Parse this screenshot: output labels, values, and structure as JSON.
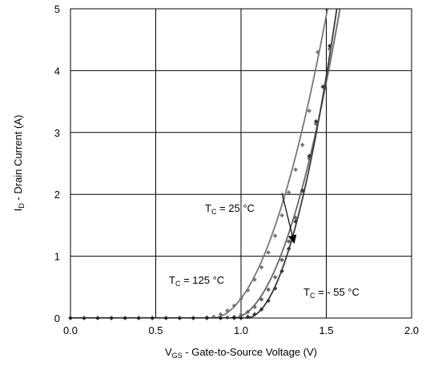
{
  "chart_data": {
    "type": "scatter",
    "xlabel": {
      "main": "V",
      "sub": "GS",
      "rest": " - Gate-to-Source Voltage (V)"
    },
    "ylabel": {
      "main": "I",
      "sub": "D",
      "rest": " - Drain Current  (A)"
    },
    "xlim": [
      0,
      2
    ],
    "ylim": [
      0,
      5
    ],
    "x_ticks": [
      "0.0",
      "0.5",
      "1.0",
      "1.5",
      "2.0"
    ],
    "y_ticks": [
      "0",
      "1",
      "2",
      "3",
      "4",
      "5"
    ],
    "x_tick_values": [
      0,
      0.5,
      1.0,
      1.5,
      2.0
    ],
    "y_tick_values": [
      0,
      1,
      2,
      3,
      4,
      5
    ],
    "grid": true,
    "series": [
      {
        "key": "t125",
        "label": {
          "main": "T",
          "sub": "C",
          "rest": " = 125 °C"
        },
        "color": "#777777",
        "curve": {
          "vth": 0.83,
          "k": 10.9,
          "n": 2.0
        },
        "points": [
          [
            0.0,
            0.0
          ],
          [
            0.08,
            0.0
          ],
          [
            0.16,
            0.0
          ],
          [
            0.24,
            0.0
          ],
          [
            0.32,
            0.0
          ],
          [
            0.4,
            0.0
          ],
          [
            0.48,
            0.0
          ],
          [
            0.56,
            0.0
          ],
          [
            0.64,
            0.0
          ],
          [
            0.72,
            0.0
          ],
          [
            0.8,
            0.01
          ],
          [
            0.84,
            0.02
          ],
          [
            0.88,
            0.06
          ],
          [
            0.92,
            0.12
          ],
          [
            0.96,
            0.2
          ],
          [
            1.0,
            0.31
          ],
          [
            1.04,
            0.45
          ],
          [
            1.08,
            0.62
          ],
          [
            1.12,
            0.82
          ],
          [
            1.16,
            1.06
          ],
          [
            1.2,
            1.33
          ],
          [
            1.24,
            1.66
          ],
          [
            1.28,
            2.03
          ],
          [
            1.32,
            2.4
          ],
          [
            1.36,
            2.8
          ],
          [
            1.4,
            3.35
          ],
          [
            1.45,
            4.3
          ]
        ]
      },
      {
        "key": "t25",
        "label": {
          "main": "T",
          "sub": "C",
          "rest": " = 25 °C"
        },
        "color": "#666666",
        "curve": {
          "vth": 0.95,
          "k": 12.6,
          "n": 2.0
        },
        "points": [
          [
            0.0,
            0.0
          ],
          [
            0.08,
            0.0
          ],
          [
            0.16,
            0.0
          ],
          [
            0.24,
            0.0
          ],
          [
            0.32,
            0.0
          ],
          [
            0.4,
            0.0
          ],
          [
            0.48,
            0.0
          ],
          [
            0.56,
            0.0
          ],
          [
            0.64,
            0.0
          ],
          [
            0.72,
            0.0
          ],
          [
            0.8,
            0.0
          ],
          [
            0.88,
            0.0
          ],
          [
            0.92,
            0.01
          ],
          [
            0.96,
            0.02
          ],
          [
            1.0,
            0.05
          ],
          [
            1.04,
            0.1
          ],
          [
            1.08,
            0.18
          ],
          [
            1.12,
            0.3
          ],
          [
            1.16,
            0.46
          ],
          [
            1.2,
            0.66
          ],
          [
            1.24,
            0.94
          ],
          [
            1.28,
            1.24
          ],
          [
            1.32,
            1.62
          ],
          [
            1.36,
            2.06
          ],
          [
            1.4,
            2.58
          ],
          [
            1.44,
            3.14
          ],
          [
            1.52,
            4.35
          ]
        ]
      },
      {
        "key": "tm55",
        "label": {
          "main": "T",
          "sub": "C",
          "rest": " = - 55 °C"
        },
        "color": "#3a3a3a",
        "curve": {
          "vth": 1.03,
          "k": 17.7,
          "n": 2.0
        },
        "points": [
          [
            0.0,
            0.0
          ],
          [
            0.08,
            0.0
          ],
          [
            0.16,
            0.0
          ],
          [
            0.24,
            0.0
          ],
          [
            0.32,
            0.0
          ],
          [
            0.4,
            0.0
          ],
          [
            0.48,
            0.0
          ],
          [
            0.56,
            0.0
          ],
          [
            0.64,
            0.0
          ],
          [
            0.72,
            0.0
          ],
          [
            0.8,
            0.0
          ],
          [
            0.88,
            0.0
          ],
          [
            0.96,
            0.0
          ],
          [
            1.0,
            0.0
          ],
          [
            1.04,
            0.02
          ],
          [
            1.08,
            0.06
          ],
          [
            1.12,
            0.14
          ],
          [
            1.16,
            0.28
          ],
          [
            1.2,
            0.48
          ],
          [
            1.24,
            0.76
          ],
          [
            1.28,
            1.12
          ],
          [
            1.32,
            1.56
          ],
          [
            1.36,
            2.06
          ],
          [
            1.4,
            2.62
          ],
          [
            1.44,
            3.18
          ],
          [
            1.48,
            3.74
          ],
          [
            1.52,
            4.4
          ]
        ]
      }
    ],
    "annotations": [
      {
        "series": "t25",
        "arrow_from": [
          1.24,
          2.02
        ],
        "arrow_to": [
          1.31,
          1.23
        ]
      }
    ]
  }
}
